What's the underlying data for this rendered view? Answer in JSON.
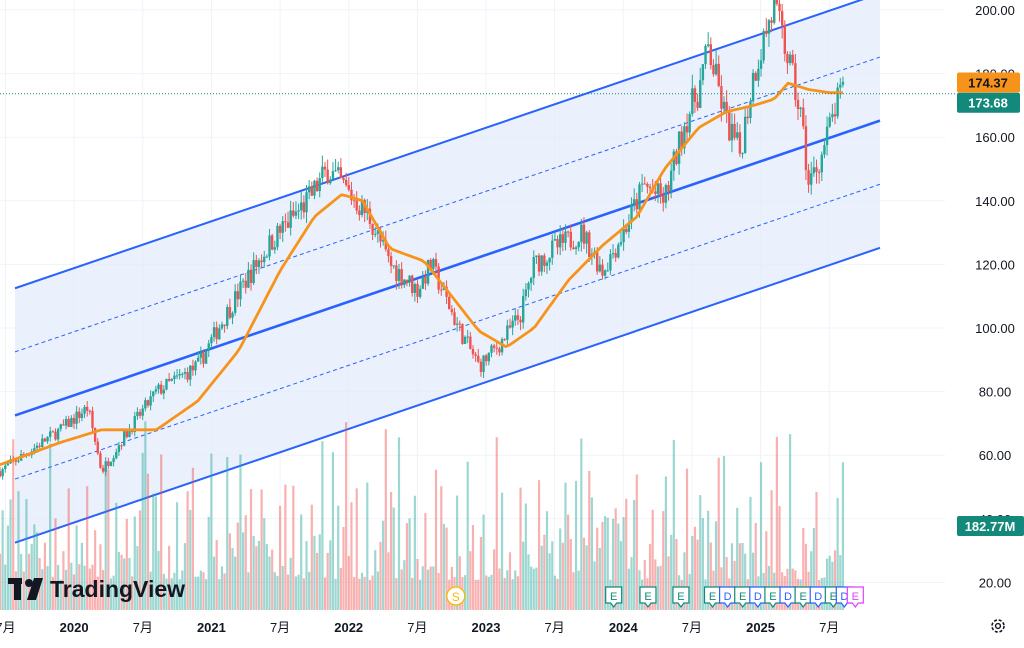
{
  "chart_data": {
    "type": "candlestick",
    "title": "",
    "xlabel": "",
    "ylabel": "",
    "ylim": [
      11,
      203
    ],
    "y_ticks": [
      "200.00",
      "180.00",
      "160.00",
      "140.00",
      "120.00",
      "100.00",
      "80.00",
      "60.00",
      "40.00",
      "20.00"
    ],
    "x_ticks": [
      {
        "label": "7月",
        "year": false,
        "t": 2019.5
      },
      {
        "label": "2020",
        "year": true,
        "t": 2020.0
      },
      {
        "label": "7月",
        "year": false,
        "t": 2020.5
      },
      {
        "label": "2021",
        "year": true,
        "t": 2021.0
      },
      {
        "label": "7月",
        "year": false,
        "t": 2021.5
      },
      {
        "label": "2022",
        "year": true,
        "t": 2022.0
      },
      {
        "label": "7月",
        "year": false,
        "t": 2022.5
      },
      {
        "label": "2023",
        "year": true,
        "t": 2023.0
      },
      {
        "label": "7月",
        "year": false,
        "t": 2023.5
      },
      {
        "label": "2024",
        "year": true,
        "t": 2024.0
      },
      {
        "label": "7月",
        "year": false,
        "t": 2024.5
      },
      {
        "label": "2025",
        "year": true,
        "t": 2025.0
      },
      {
        "label": "7月",
        "year": false,
        "t": 2025.5
      }
    ],
    "x_range": [
      2019.46,
      2025.87
    ],
    "price_path": [
      [
        2019.46,
        55
      ],
      [
        2019.9,
        68
      ],
      [
        2020.1,
        75
      ],
      [
        2020.2,
        55
      ],
      [
        2020.35,
        65
      ],
      [
        2020.6,
        80
      ],
      [
        2020.9,
        88
      ],
      [
        2021.05,
        100
      ],
      [
        2021.25,
        115
      ],
      [
        2021.45,
        128
      ],
      [
        2021.7,
        140
      ],
      [
        2021.85,
        150
      ],
      [
        2022.05,
        140
      ],
      [
        2022.15,
        135
      ],
      [
        2022.3,
        120
      ],
      [
        2022.5,
        112
      ],
      [
        2022.6,
        120
      ],
      [
        2022.8,
        100
      ],
      [
        2022.95,
        88
      ],
      [
        2023.1,
        95
      ],
      [
        2023.25,
        104
      ],
      [
        2023.35,
        120
      ],
      [
        2023.5,
        125
      ],
      [
        2023.7,
        130
      ],
      [
        2023.85,
        118
      ],
      [
        2024.0,
        130
      ],
      [
        2024.15,
        145
      ],
      [
        2024.3,
        140
      ],
      [
        2024.45,
        165
      ],
      [
        2024.55,
        175
      ],
      [
        2024.62,
        188
      ],
      [
        2024.75,
        165
      ],
      [
        2024.85,
        155
      ],
      [
        2024.95,
        180
      ],
      [
        2025.05,
        195
      ],
      [
        2025.1,
        200
      ],
      [
        2025.2,
        185
      ],
      [
        2025.3,
        165
      ],
      [
        2025.35,
        145
      ],
      [
        2025.45,
        155
      ],
      [
        2025.55,
        170
      ],
      [
        2025.6,
        174
      ]
    ],
    "moving_average": [
      [
        2019.46,
        57
      ],
      [
        2019.9,
        64
      ],
      [
        2020.2,
        68
      ],
      [
        2020.6,
        68
      ],
      [
        2020.9,
        77
      ],
      [
        2021.2,
        93
      ],
      [
        2021.5,
        118
      ],
      [
        2021.75,
        135
      ],
      [
        2021.95,
        142
      ],
      [
        2022.1,
        140
      ],
      [
        2022.3,
        125
      ],
      [
        2022.55,
        121
      ],
      [
        2022.75,
        110
      ],
      [
        2022.95,
        99
      ],
      [
        2023.15,
        94
      ],
      [
        2023.35,
        100
      ],
      [
        2023.6,
        115
      ],
      [
        2023.85,
        126
      ],
      [
        2024.1,
        135
      ],
      [
        2024.3,
        150
      ],
      [
        2024.55,
        163
      ],
      [
        2024.75,
        168
      ],
      [
        2024.95,
        170
      ],
      [
        2025.1,
        172
      ],
      [
        2025.2,
        177
      ],
      [
        2025.35,
        175
      ],
      [
        2025.5,
        174
      ],
      [
        2025.6,
        174
      ]
    ],
    "channel": {
      "mid_start": [
        2019.46,
        72.5
      ],
      "mid_end": [
        2025.87,
        165.2
      ],
      "offset": 40,
      "inner_offset": 20
    },
    "volume_max_bar_height": 170,
    "price_labels": [
      {
        "value": 174.37,
        "text": "174.37",
        "color": "#f7931a"
      },
      {
        "value": 173.68,
        "text": "173.68",
        "color": "#12897a"
      }
    ],
    "volume_label": {
      "text": "182.77M",
      "color": "#12897a"
    },
    "events": [
      {
        "t": 2022.78,
        "label": "S",
        "type": "split"
      },
      {
        "t": 2023.93,
        "label": "E",
        "type": "earnings"
      },
      {
        "t": 2024.18,
        "label": "E",
        "type": "earnings"
      },
      {
        "t": 2024.42,
        "label": "E",
        "type": "earnings"
      },
      {
        "t": 2024.65,
        "label": "E",
        "type": "earnings"
      },
      {
        "t": 2024.76,
        "label": "D",
        "type": "dividend"
      },
      {
        "t": 2024.87,
        "label": "E",
        "type": "earnings"
      },
      {
        "t": 2024.98,
        "label": "D",
        "type": "dividend"
      },
      {
        "t": 2025.09,
        "label": "E",
        "type": "earnings"
      },
      {
        "t": 2025.2,
        "label": "D",
        "type": "dividend"
      },
      {
        "t": 2025.31,
        "label": "E",
        "type": "earnings"
      },
      {
        "t": 2025.42,
        "label": "D",
        "type": "dividend"
      },
      {
        "t": 2025.53,
        "label": "E",
        "type": "earnings"
      },
      {
        "t": 2025.61,
        "label": "D",
        "type": "dividend"
      },
      {
        "t": 2025.69,
        "label": "E",
        "type": "future-earnings"
      }
    ],
    "colors": {
      "up": "#26a69a",
      "down": "#ef5350",
      "ma": "#f7931a",
      "channel": "#2962ff",
      "channel_fill": "#e3ecfb",
      "grid": "#f0f3fa",
      "axis_text": "#131722"
    }
  },
  "branding": {
    "logo_text": "TradingView"
  },
  "settings_icon": "gear-icon"
}
